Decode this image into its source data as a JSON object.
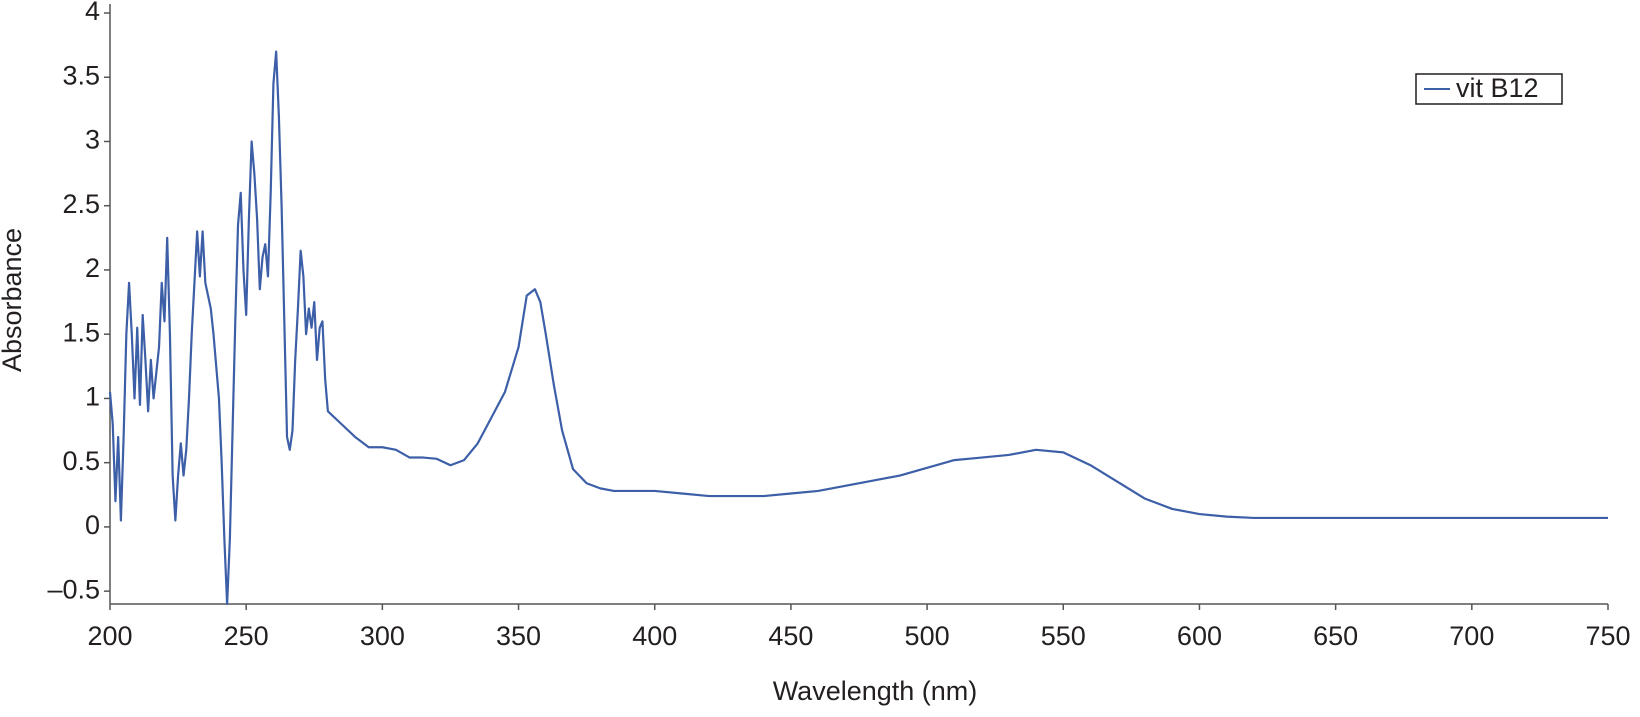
{
  "chart_data": {
    "type": "line",
    "xlabel": "Wavelength (nm)",
    "ylabel": "Absorbance",
    "xlim": [
      200,
      750
    ],
    "ylim": [
      -0.6,
      4
    ],
    "xticks": [
      200,
      250,
      300,
      350,
      400,
      450,
      500,
      550,
      600,
      650,
      700,
      750
    ],
    "yticks": [
      {
        "value": -0.5,
        "label": "–0.5"
      },
      0,
      0.5,
      1,
      1.5,
      2,
      2.5,
      3,
      3.5,
      4
    ],
    "legend": "upper right",
    "grid": false,
    "x": [
      200,
      201,
      202,
      203,
      204,
      205,
      206,
      207,
      208,
      209,
      210,
      211,
      212,
      213,
      214,
      215,
      216,
      217,
      218,
      219,
      220,
      221,
      222,
      223,
      224,
      225,
      226,
      227,
      228,
      229,
      230,
      231,
      232,
      233,
      234,
      235,
      236,
      237,
      238,
      239,
      240,
      241,
      242,
      243,
      244,
      245,
      246,
      247,
      248,
      249,
      250,
      251,
      252,
      253,
      254,
      255,
      256,
      257,
      258,
      259,
      260,
      261,
      262,
      263,
      264,
      265,
      266,
      267,
      268,
      269,
      270,
      271,
      272,
      273,
      274,
      275,
      276,
      277,
      278,
      279,
      280,
      285,
      290,
      295,
      300,
      305,
      310,
      315,
      320,
      325,
      330,
      335,
      340,
      345,
      350,
      353,
      356,
      358,
      360,
      363,
      366,
      370,
      375,
      380,
      385,
      400,
      410,
      420,
      440,
      450,
      460,
      470,
      480,
      490,
      500,
      510,
      520,
      530,
      540,
      550,
      560,
      570,
      580,
      590,
      600,
      610,
      620,
      700,
      750
    ],
    "series": [
      {
        "name": "vit B12",
        "color": "#3d5fa8",
        "values": [
          1.05,
          0.8,
          0.2,
          0.7,
          0.05,
          0.7,
          1.5,
          1.9,
          1.5,
          1.0,
          1.55,
          0.95,
          1.65,
          1.3,
          0.9,
          1.3,
          1.0,
          1.2,
          1.4,
          1.9,
          1.6,
          2.25,
          1.5,
          0.4,
          0.05,
          0.4,
          0.65,
          0.4,
          0.6,
          1.0,
          1.5,
          1.9,
          2.3,
          1.95,
          2.3,
          1.9,
          1.8,
          1.7,
          1.5,
          1.25,
          1.0,
          0.5,
          -0.1,
          -0.6,
          -0.1,
          0.75,
          1.6,
          2.35,
          2.6,
          2.0,
          1.65,
          2.4,
          3.0,
          2.75,
          2.4,
          1.85,
          2.1,
          2.2,
          1.95,
          2.6,
          3.45,
          3.7,
          3.2,
          2.5,
          1.6,
          0.7,
          0.6,
          0.75,
          1.3,
          1.7,
          2.15,
          1.95,
          1.5,
          1.7,
          1.55,
          1.75,
          1.3,
          1.55,
          1.6,
          1.15,
          0.9,
          0.8,
          0.7,
          0.62,
          0.62,
          0.6,
          0.54,
          0.54,
          0.53,
          0.48,
          0.52,
          0.65,
          0.85,
          1.05,
          1.4,
          1.8,
          1.85,
          1.75,
          1.5,
          1.1,
          0.75,
          0.45,
          0.34,
          0.3,
          0.28,
          0.28,
          0.26,
          0.24,
          0.24,
          0.26,
          0.28,
          0.32,
          0.36,
          0.4,
          0.46,
          0.52,
          0.54,
          0.56,
          0.6,
          0.58,
          0.48,
          0.35,
          0.22,
          0.14,
          0.1,
          0.08,
          0.07,
          0.07,
          0.07
        ]
      }
    ]
  }
}
